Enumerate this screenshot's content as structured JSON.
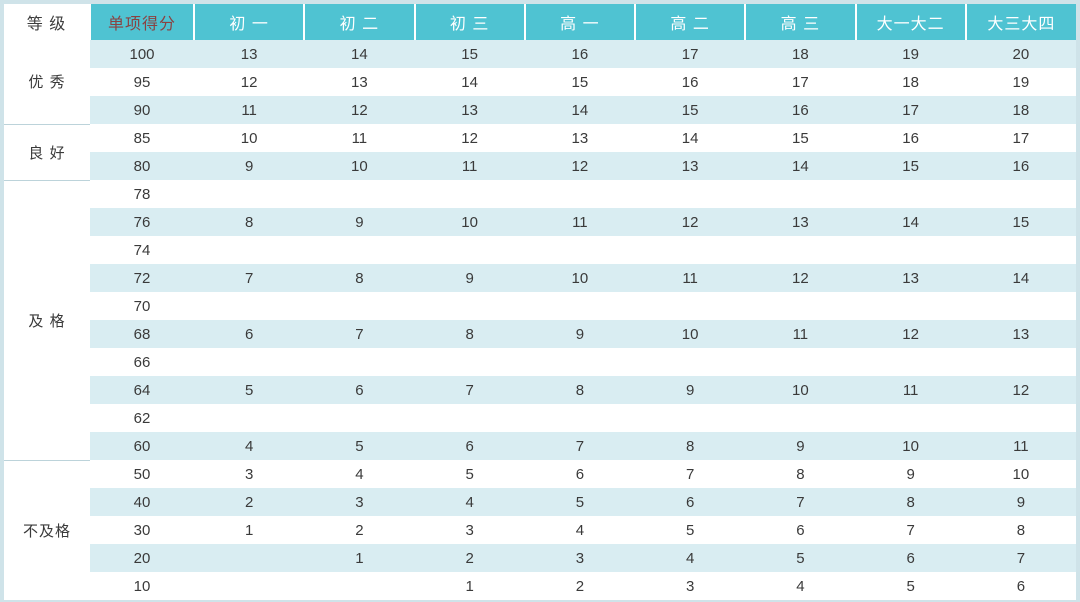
{
  "colors": {
    "page_bg": "#cfe3e9",
    "header_bg": "#4fc3d2",
    "header_text": "#ffffff",
    "score_header_text": "#8a4242",
    "grade_header_text": "#3d3d3d",
    "stripe_bg": "#d9edf2",
    "white_bg": "#ffffff",
    "body_text": "#3a3a3a",
    "group_divider": "#bcd3da"
  },
  "chart_data": {
    "type": "table",
    "header": {
      "grade_label": "等 级",
      "score_label": "单项得分",
      "columns": [
        "初 一",
        "初 二",
        "初 三",
        "高 一",
        "高 二",
        "高 三",
        "大一大二",
        "大三大四"
      ]
    },
    "groups": [
      {
        "label": "优 秀",
        "rows": [
          {
            "score": "100",
            "values": [
              "13",
              "14",
              "15",
              "16",
              "17",
              "18",
              "19",
              "20"
            ]
          },
          {
            "score": "95",
            "values": [
              "12",
              "13",
              "14",
              "15",
              "16",
              "17",
              "18",
              "19"
            ]
          },
          {
            "score": "90",
            "values": [
              "11",
              "12",
              "13",
              "14",
              "15",
              "16",
              "17",
              "18"
            ]
          }
        ]
      },
      {
        "label": "良 好",
        "rows": [
          {
            "score": "85",
            "values": [
              "10",
              "11",
              "12",
              "13",
              "14",
              "15",
              "16",
              "17"
            ]
          },
          {
            "score": "80",
            "values": [
              "9",
              "10",
              "11",
              "12",
              "13",
              "14",
              "15",
              "16"
            ]
          }
        ]
      },
      {
        "label": "及 格",
        "rows": [
          {
            "score": "78",
            "values": [
              "",
              "",
              "",
              "",
              "",
              "",
              "",
              ""
            ]
          },
          {
            "score": "76",
            "values": [
              "8",
              "9",
              "10",
              "11",
              "12",
              "13",
              "14",
              "15"
            ]
          },
          {
            "score": "74",
            "values": [
              "",
              "",
              "",
              "",
              "",
              "",
              "",
              ""
            ]
          },
          {
            "score": "72",
            "values": [
              "7",
              "8",
              "9",
              "10",
              "11",
              "12",
              "13",
              "14"
            ]
          },
          {
            "score": "70",
            "values": [
              "",
              "",
              "",
              "",
              "",
              "",
              "",
              ""
            ]
          },
          {
            "score": "68",
            "values": [
              "6",
              "7",
              "8",
              "9",
              "10",
              "11",
              "12",
              "13"
            ]
          },
          {
            "score": "66",
            "values": [
              "",
              "",
              "",
              "",
              "",
              "",
              "",
              ""
            ]
          },
          {
            "score": "64",
            "values": [
              "5",
              "6",
              "7",
              "8",
              "9",
              "10",
              "11",
              "12"
            ]
          },
          {
            "score": "62",
            "values": [
              "",
              "",
              "",
              "",
              "",
              "",
              "",
              ""
            ]
          },
          {
            "score": "60",
            "values": [
              "4",
              "5",
              "6",
              "7",
              "8",
              "9",
              "10",
              "11"
            ]
          }
        ]
      },
      {
        "label": "不及格",
        "rows": [
          {
            "score": "50",
            "values": [
              "3",
              "4",
              "5",
              "6",
              "7",
              "8",
              "9",
              "10"
            ]
          },
          {
            "score": "40",
            "values": [
              "2",
              "3",
              "4",
              "5",
              "6",
              "7",
              "8",
              "9"
            ]
          },
          {
            "score": "30",
            "values": [
              "1",
              "2",
              "3",
              "4",
              "5",
              "6",
              "7",
              "8"
            ]
          },
          {
            "score": "20",
            "values": [
              "",
              "1",
              "2",
              "3",
              "4",
              "5",
              "6",
              "7"
            ]
          },
          {
            "score": "10",
            "values": [
              "",
              "",
              "1",
              "2",
              "3",
              "4",
              "5",
              "6"
            ]
          }
        ]
      }
    ]
  }
}
